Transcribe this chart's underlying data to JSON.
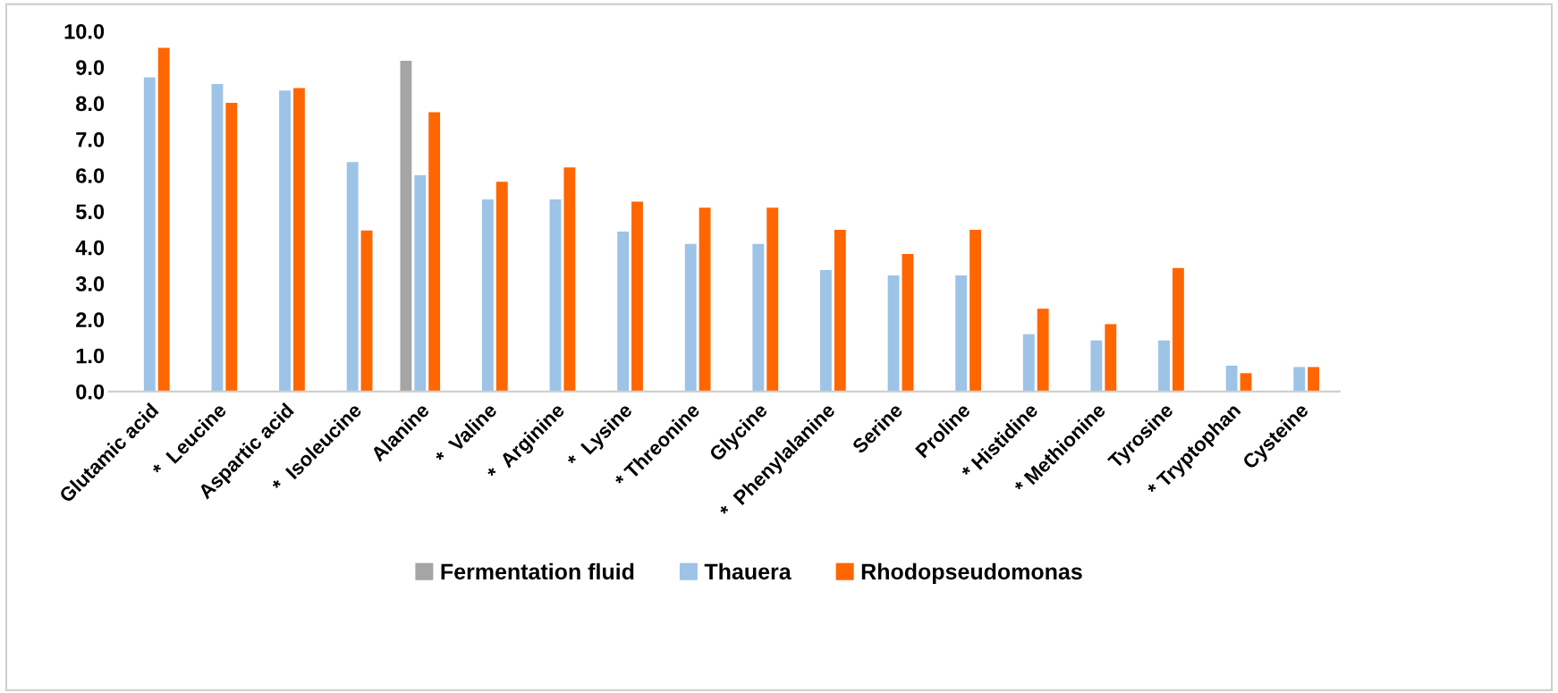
{
  "chart_data": {
    "type": "bar",
    "categories": [
      "Glutamic acid",
      "*  Leucine",
      "Aspartic acid",
      "*  Isoleucine",
      "Alanine",
      "*  Valine",
      "*  Arginine",
      "*  Lysine",
      "* Threonine",
      "Glycine",
      "*  Phenylalanine",
      "Serine",
      "Proline",
      "* Histidine",
      "* Methionine",
      "Tyrosine",
      "* Tryptophan",
      "Cysteine"
    ],
    "series": [
      {
        "name": "Fermentation fluid",
        "color": "#a5a5a5",
        "values": [
          null,
          null,
          null,
          null,
          9.18,
          null,
          null,
          null,
          null,
          null,
          null,
          null,
          null,
          null,
          null,
          null,
          null,
          null
        ]
      },
      {
        "name": "Thauera",
        "color": "#9dc3e6",
        "values": [
          8.72,
          8.53,
          8.35,
          6.37,
          6.0,
          5.33,
          5.33,
          4.44,
          4.1,
          4.1,
          3.37,
          3.22,
          3.22,
          1.59,
          1.42,
          1.42,
          0.72,
          0.68
        ]
      },
      {
        "name": "Rhodopseudomonas",
        "color": "#ff6600",
        "values": [
          9.54,
          8.01,
          8.42,
          4.47,
          7.75,
          5.82,
          6.22,
          5.27,
          5.1,
          5.1,
          4.49,
          3.82,
          4.49,
          2.3,
          1.87,
          3.43,
          0.51,
          0.68
        ]
      }
    ],
    "ylim": [
      0,
      10
    ],
    "yticks": [
      {
        "value": 0,
        "label": "0.0"
      },
      {
        "value": 1,
        "label": "1.0"
      },
      {
        "value": 2,
        "label": "2.0"
      },
      {
        "value": 3,
        "label": "3.0"
      },
      {
        "value": 4,
        "label": "4.0"
      },
      {
        "value": 5,
        "label": "5.0"
      },
      {
        "value": 6,
        "label": "6.0"
      },
      {
        "value": 7,
        "label": "7.0"
      },
      {
        "value": 8,
        "label": "8.0"
      },
      {
        "value": 9,
        "label": "9.0"
      },
      {
        "value": 10,
        "label": "10.0"
      }
    ],
    "grid": false,
    "legend": "bottom"
  }
}
